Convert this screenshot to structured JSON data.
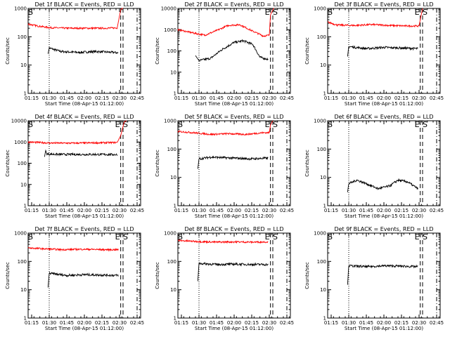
{
  "figure": {
    "ylabel": "Counts/sec",
    "xlabel": "Start Time (08-Apr-15 01:12:00)"
  },
  "chart_data": [
    {
      "type": "line",
      "title": "Det 1f BLACK = Events, RED = LLD",
      "xticks": [
        "01:15",
        "01:30",
        "01:45",
        "02:00",
        "02:15",
        "02:30",
        "02:45"
      ],
      "yscale": "log",
      "ylim": [
        1,
        1000
      ],
      "yticks": [
        "1",
        "10",
        "100",
        "1000"
      ],
      "series": [
        {
          "color": "#000000",
          "points": [
            [
              "01:29",
              25
            ],
            [
              "01:30",
              40
            ],
            [
              "01:40",
              30
            ],
            [
              "01:55",
              28
            ],
            [
              "02:10",
              30
            ],
            [
              "02:25",
              28
            ],
            [
              "02:29",
              27
            ]
          ]
        },
        {
          "color": "#ff0000",
          "points": [
            [
              "01:12",
              280
            ],
            [
              "01:20",
              240
            ],
            [
              "01:30",
              210
            ],
            [
              "01:45",
              200
            ],
            [
              "02:00",
              200
            ],
            [
              "02:15",
              200
            ],
            [
              "02:28",
              205
            ],
            [
              "02:31",
              900
            ],
            [
              "02:33",
              1100
            ]
          ]
        }
      ],
      "markers": [
        {
          "label": "S",
          "t": "01:12"
        },
        {
          "label": "",
          "t": "02:33"
        }
      ],
      "vlines": [
        "01:30",
        "02:31",
        "02:33",
        "02:45"
      ]
    },
    {
      "type": "line",
      "title": "Det 2f BLACK = Events, RED = LLD",
      "xticks": [
        "01:15",
        "01:30",
        "01:45",
        "02:00",
        "02:15",
        "02:30",
        "02:45"
      ],
      "yscale": "log",
      "ylim": [
        1,
        10000
      ],
      "yticks": [
        "1",
        "10",
        "100",
        "1000",
        "10000"
      ],
      "series": [
        {
          "color": "#000000",
          "points": [
            [
              "01:27",
              60
            ],
            [
              "01:30",
              35
            ],
            [
              "01:40",
              45
            ],
            [
              "01:50",
              120
            ],
            [
              "02:00",
              250
            ],
            [
              "02:08",
              300
            ],
            [
              "02:16",
              200
            ],
            [
              "02:22",
              50
            ],
            [
              "02:29",
              40
            ]
          ]
        },
        {
          "color": "#ff0000",
          "points": [
            [
              "01:12",
              1000
            ],
            [
              "01:25",
              700
            ],
            [
              "01:35",
              550
            ],
            [
              "01:45",
              900
            ],
            [
              "01:55",
              1600
            ],
            [
              "02:05",
              1700
            ],
            [
              "02:15",
              900
            ],
            [
              "02:25",
              500
            ],
            [
              "02:30",
              550
            ],
            [
              "02:31",
              5000
            ],
            [
              "02:34",
              11000
            ]
          ]
        }
      ],
      "markers": [
        {
          "label": "E",
          "t": "02:31"
        },
        {
          "label": "S",
          "t": "02:33"
        }
      ],
      "vlines": [
        "01:30",
        "02:31",
        "02:33",
        "02:45"
      ]
    },
    {
      "type": "line",
      "title": "Det 3f BLACK = Events, RED = LLD",
      "xticks": [
        "01:15",
        "01:30",
        "01:45",
        "02:00",
        "02:15",
        "02:30",
        "02:45"
      ],
      "yscale": "log",
      "ylim": [
        1,
        1000
      ],
      "yticks": [
        "1",
        "10",
        "100",
        "1000"
      ],
      "series": [
        {
          "color": "#000000",
          "points": [
            [
              "01:29",
              20
            ],
            [
              "01:30",
              45
            ],
            [
              "01:45",
              38
            ],
            [
              "02:00",
              42
            ],
            [
              "02:15",
              40
            ],
            [
              "02:29",
              38
            ]
          ]
        },
        {
          "color": "#ff0000",
          "points": [
            [
              "01:12",
              330
            ],
            [
              "01:20",
              260
            ],
            [
              "01:35",
              250
            ],
            [
              "01:50",
              270
            ],
            [
              "02:05",
              250
            ],
            [
              "02:20",
              240
            ],
            [
              "02:30",
              240
            ],
            [
              "02:31",
              400
            ],
            [
              "02:33",
              1000
            ]
          ]
        }
      ],
      "markers": [
        {
          "label": "S",
          "t": "01:12"
        },
        {
          "label": "E",
          "t": "02:31"
        },
        {
          "label": "S",
          "t": "02:33"
        }
      ],
      "vlines": [
        "01:30",
        "02:31",
        "02:33",
        "02:45"
      ]
    },
    {
      "type": "line",
      "title": "Det 4f BLACK = Events, RED = LLD",
      "xticks": [
        "01:15",
        "01:30",
        "01:45",
        "02:00",
        "02:15",
        "02:30",
        "02:45"
      ],
      "yscale": "log",
      "ylim": [
        1,
        10000
      ],
      "yticks": [
        "1",
        "10",
        "100",
        "1000",
        "10000"
      ],
      "series": [
        {
          "color": "#000000",
          "points": [
            [
              "01:26",
              200
            ],
            [
              "01:27",
              400
            ],
            [
              "01:28",
              270
            ],
            [
              "01:40",
              260
            ],
            [
              "02:00",
              260
            ],
            [
              "02:15",
              260
            ],
            [
              "02:28",
              255
            ]
          ]
        },
        {
          "color": "#ff0000",
          "points": [
            [
              "01:12",
              1000
            ],
            [
              "01:30",
              900
            ],
            [
              "01:45",
              880
            ],
            [
              "02:00",
              900
            ],
            [
              "02:15",
              920
            ],
            [
              "02:28",
              950
            ],
            [
              "02:31",
              2000
            ],
            [
              "02:34",
              9000
            ],
            [
              "02:36",
              10000
            ]
          ]
        }
      ],
      "markers": [
        {
          "label": "S",
          "t": "01:12"
        },
        {
          "label": "E",
          "t": "02:31"
        },
        {
          "label": "S",
          "t": "02:33"
        }
      ],
      "vlines": [
        "01:30",
        "02:31",
        "02:33",
        "02:45"
      ]
    },
    {
      "type": "line",
      "title": "Det 5f BLACK = Events, RED = LLD",
      "xticks": [
        "01:15",
        "01:30",
        "01:45",
        "02:00",
        "02:15",
        "02:30",
        "02:45"
      ],
      "yscale": "log",
      "ylim": [
        1,
        1000
      ],
      "yticks": [
        "1",
        "10",
        "100",
        "1000"
      ],
      "series": [
        {
          "color": "#000000",
          "points": [
            [
              "01:29",
              20
            ],
            [
              "01:30",
              45
            ],
            [
              "01:40",
              52
            ],
            [
              "02:00",
              48
            ],
            [
              "02:15",
              45
            ],
            [
              "02:29",
              48
            ]
          ]
        },
        {
          "color": "#ff0000",
          "points": [
            [
              "01:12",
              420
            ],
            [
              "01:25",
              380
            ],
            [
              "01:40",
              330
            ],
            [
              "01:55",
              350
            ],
            [
              "02:10",
              330
            ],
            [
              "02:25",
              380
            ],
            [
              "02:30",
              380
            ],
            [
              "02:31",
              700
            ],
            [
              "02:33",
              1000
            ]
          ]
        }
      ],
      "markers": [
        {
          "label": "S",
          "t": "01:12"
        },
        {
          "label": "E",
          "t": "02:31"
        },
        {
          "label": "S",
          "t": "02:33"
        }
      ],
      "vlines": [
        "01:30",
        "02:31",
        "02:33",
        "02:45"
      ]
    },
    {
      "type": "line",
      "title": "Det 6f BLACK = Events, RED = LLD",
      "xticks": [
        "01:15",
        "01:30",
        "01:45",
        "02:00",
        "02:15",
        "02:30",
        "02:45"
      ],
      "yscale": "log",
      "ylim": [
        1,
        1000
      ],
      "yticks": [
        "1",
        "10",
        "100",
        "1000"
      ],
      "series": [
        {
          "color": "#000000",
          "points": [
            [
              "01:29",
              3
            ],
            [
              "01:30",
              6
            ],
            [
              "01:37",
              8
            ],
            [
              "01:45",
              6
            ],
            [
              "01:55",
              4
            ],
            [
              "02:05",
              5
            ],
            [
              "02:12",
              8
            ],
            [
              "02:20",
              7
            ],
            [
              "02:29",
              4
            ]
          ]
        }
      ],
      "markers": [
        {
          "label": "S",
          "t": "01:12"
        },
        {
          "label": "E",
          "t": "02:31"
        },
        {
          "label": "S",
          "t": "02:33"
        }
      ],
      "vlines": [
        "01:30",
        "02:31",
        "02:33",
        "02:45"
      ]
    },
    {
      "type": "line",
      "title": "Det 7f BLACK = Events, RED = LLD",
      "xticks": [
        "01:15",
        "01:30",
        "01:45",
        "02:00",
        "02:15",
        "02:30",
        "02:45"
      ],
      "yscale": "log",
      "ylim": [
        1,
        1000
      ],
      "yticks": [
        "1",
        "10",
        "100",
        "1000"
      ],
      "series": [
        {
          "color": "#000000",
          "points": [
            [
              "01:29",
              12
            ],
            [
              "01:30",
              38
            ],
            [
              "01:45",
              32
            ],
            [
              "02:00",
              34
            ],
            [
              "02:15",
              33
            ],
            [
              "02:29",
              32
            ]
          ]
        },
        {
          "color": "#ff0000",
          "points": [
            [
              "01:12",
              300
            ],
            [
              "01:25",
              280
            ],
            [
              "01:40",
              260
            ],
            [
              "02:00",
              270
            ],
            [
              "02:15",
              260
            ],
            [
              "02:29",
              260
            ]
          ]
        }
      ],
      "markers": [
        {
          "label": "S",
          "t": "01:12"
        },
        {
          "label": "E",
          "t": "02:31"
        },
        {
          "label": "S",
          "t": "02:33"
        }
      ],
      "vlines": [
        "01:30",
        "02:31",
        "02:33",
        "02:45"
      ]
    },
    {
      "type": "line",
      "title": "Det 8f BLACK = Events, RED = LLD",
      "xticks": [
        "01:15",
        "01:30",
        "01:45",
        "02:00",
        "02:15",
        "02:30",
        "02:45"
      ],
      "yscale": "log",
      "ylim": [
        1,
        1000
      ],
      "yticks": [
        "1",
        "10",
        "100",
        "1000"
      ],
      "series": [
        {
          "color": "#000000",
          "points": [
            [
              "01:29",
              20
            ],
            [
              "01:30",
              85
            ],
            [
              "01:45",
              78
            ],
            [
              "02:00",
              80
            ],
            [
              "02:15",
              78
            ],
            [
              "02:29",
              78
            ]
          ]
        },
        {
          "color": "#ff0000",
          "points": [
            [
              "01:12",
              550
            ],
            [
              "01:30",
              500
            ],
            [
              "01:45",
              480
            ],
            [
              "02:00",
              490
            ],
            [
              "02:15",
              480
            ],
            [
              "02:29",
              490
            ]
          ]
        }
      ],
      "markers": [
        {
          "label": "S",
          "t": "01:12"
        },
        {
          "label": "E",
          "t": "02:31"
        },
        {
          "label": "S",
          "t": "02:33"
        }
      ],
      "vlines": [
        "01:30",
        "02:31",
        "02:33",
        "02:45"
      ]
    },
    {
      "type": "line",
      "title": "Det 9f BLACK = Events, RED = LLD",
      "xticks": [
        "01:15",
        "01:30",
        "01:45",
        "02:00",
        "02:15",
        "02:30",
        "02:45"
      ],
      "yscale": "log",
      "ylim": [
        1,
        1000
      ],
      "yticks": [
        "1",
        "10",
        "100",
        "1000"
      ],
      "series": [
        {
          "color": "#000000",
          "points": [
            [
              "01:29",
              15
            ],
            [
              "01:30",
              70
            ],
            [
              "01:45",
              65
            ],
            [
              "02:00",
              70
            ],
            [
              "02:15",
              68
            ],
            [
              "02:29",
              65
            ]
          ]
        }
      ],
      "markers": [
        {
          "label": "S",
          "t": "01:12"
        },
        {
          "label": "E",
          "t": "02:31"
        },
        {
          "label": "S",
          "t": "02:33"
        }
      ],
      "vlines": [
        "01:30",
        "02:31",
        "02:33",
        "02:45"
      ]
    }
  ]
}
